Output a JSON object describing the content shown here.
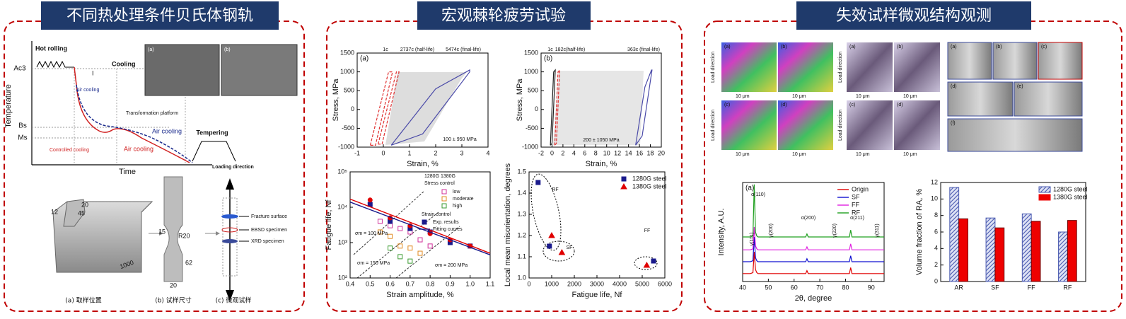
{
  "panels": [
    {
      "title": "不同热处理条件贝氏体钢轨"
    },
    {
      "title": "宏观棘轮疲劳试验"
    },
    {
      "title": "失效试样微观结构观测"
    }
  ],
  "heat_treatment": {
    "hot_rolling": "Hot rolling",
    "cooling": "Cooling",
    "air_cooling_1": "Air cooling",
    "region": "I",
    "transformation": "Transformation platform",
    "air_cooling_blue": "Air cooling",
    "air_cooling_red": "Air cooling",
    "controlled_cooling": "Controlled cooling",
    "tempering": "Tempering",
    "ylabel": "Temperature",
    "xlabel": "Time",
    "ac3": "Ac3",
    "bs": "Bs",
    "ms": "Ms",
    "insets": [
      "(a)",
      "(b)"
    ]
  },
  "specimen": {
    "loading_direction": "Loading direction",
    "rail_dims": [
      "20",
      "12",
      "45",
      "1000"
    ],
    "specimen_dims": [
      "15",
      "R20",
      "62",
      "20"
    ],
    "parts": [
      "Fracture surface",
      "EBSD specimen",
      "XRD specimen"
    ],
    "captions": [
      "(a) 取样位置",
      "(b) 试样尺寸",
      "(c) 微观试样"
    ]
  },
  "micrographs": {
    "ebsd": [
      "(a)",
      "(b)",
      "(c)",
      "(d)"
    ],
    "optical": [
      "(a)",
      "(b)",
      "(c)",
      "(d)"
    ],
    "sem": [
      "(a)",
      "(b)",
      "(c)",
      "(d)",
      "(e)",
      "(f)"
    ],
    "load_direction": "Load direction",
    "scale": "10 μm"
  },
  "chart_data": [
    {
      "type": "line",
      "panel_label": "(a)",
      "xlabel": "Strain, %",
      "ylabel": "Stress, MPa",
      "xlim": [
        -1,
        4
      ],
      "xticks": [
        -1,
        0,
        1,
        2,
        3,
        4
      ],
      "ylim": [
        -1000,
        1500
      ],
      "yticks": [
        -1000,
        -500,
        0,
        500,
        1000,
        1500
      ],
      "series": [
        {
          "color": "#e03030",
          "dash": true,
          "x": [
            -0.5,
            0.2,
            0.35,
            -0.3,
            -0.5
          ],
          "values": [
            -950,
            1000,
            1000,
            -950,
            -950
          ]
        },
        {
          "color": "#e03030",
          "dash": true,
          "x": [
            -0.2,
            0.5,
            0.6,
            -0.05,
            -0.2
          ],
          "values": [
            -920,
            1000,
            1000,
            -920,
            -920
          ]
        },
        {
          "color": "#4a4aa8",
          "x": [
            0.3,
            1.5,
            3.3,
            3.3,
            2.0,
            0.3
          ],
          "values": [
            -950,
            -650,
            1000,
            1050,
            550,
            -950
          ]
        }
      ],
      "annotations": [
        "1c",
        "2737c (half-life)",
        "5474c (final-life)",
        "100 ± 950 MPa"
      ]
    },
    {
      "type": "line",
      "panel_label": "(b)",
      "xlabel": "Strain, %",
      "ylabel": "Stress, MPa",
      "xlim": [
        -2,
        20
      ],
      "xticks": [
        -2,
        0,
        2,
        4,
        6,
        8,
        10,
        12,
        14,
        16,
        18,
        20
      ],
      "ylim": [
        -1000,
        1500
      ],
      "yticks": [
        -1000,
        -500,
        0,
        500,
        1000,
        1500
      ],
      "series": [
        {
          "color": "#222222",
          "x": [
            -0.3,
            0.3,
            0.6,
            0.0,
            -0.3
          ],
          "values": [
            -950,
            1000,
            1050,
            -900,
            -950
          ]
        },
        {
          "color": "#e03030",
          "dash": true,
          "x": [
            0.5,
            1.1,
            1.4,
            0.8,
            0.5
          ],
          "values": [
            -950,
            1000,
            1050,
            -900,
            -950
          ]
        },
        {
          "color": "#4a4aa8",
          "x": [
            15.3,
            16.5,
            18.3,
            18.2,
            17.0,
            15.3
          ],
          "values": [
            -950,
            -700,
            1050,
            1050,
            600,
            -950
          ]
        }
      ],
      "annotations": [
        "1c",
        "182c(half-life)",
        "363c (final-life)",
        "200 ± 1050 MPa"
      ]
    },
    {
      "type": "scatter",
      "xlabel": "Strain amplitude, %",
      "ylabel": "Fatigue life, Nf",
      "xlim": [
        0.4,
        1.1
      ],
      "xticks": [
        0.4,
        0.5,
        0.6,
        0.7,
        0.8,
        0.9,
        {
          "value": 1,
          "label": "1.0"
        },
        1.1
      ],
      "ylog": true,
      "ylim": [
        100,
        100000
      ],
      "yticks": [
        {
          "value": 100,
          "label": "10²"
        },
        {
          "value": 1000,
          "label": "10³"
        },
        {
          "value": 10000,
          "label": "10⁴"
        },
        {
          "value": 100000,
          "label": "10⁵"
        }
      ],
      "legend_headers": [
        "1280G 1380G",
        "Stress control",
        "Strain control"
      ],
      "series": [
        {
          "name": "low",
          "color": "#d0309a",
          "marker": "square",
          "filled": false,
          "x": [
            0.55,
            0.6,
            0.65,
            0.7,
            0.75,
            0.8
          ],
          "values": [
            4000,
            3000,
            2500,
            2000,
            1200,
            800
          ]
        },
        {
          "name": "moderate",
          "color": "#e08a20",
          "marker": "square",
          "filled": false,
          "x": [
            0.55,
            0.6,
            0.65,
            0.7,
            0.75
          ],
          "values": [
            2000,
            1500,
            800,
            700,
            500
          ]
        },
        {
          "name": "high",
          "color": "#3a9a30",
          "marker": "square",
          "filled": false,
          "x": [
            0.6,
            0.65,
            0.7
          ],
          "values": [
            700,
            400,
            300
          ]
        },
        {
          "name": "Exp. results",
          "color": "#1a1a8c",
          "marker": "square",
          "filled": true,
          "x": [
            0.5,
            0.6,
            0.7,
            0.8,
            0.9,
            1.0
          ],
          "values": [
            12000,
            4000,
            2500,
            2000,
            1000,
            800
          ]
        },
        {
          "color": "#e00000",
          "marker": "circle",
          "filled": true,
          "x": [
            0.5,
            0.6,
            0.7,
            0.8,
            0.9,
            1.0
          ],
          "values": [
            16000,
            5000,
            3000,
            1800,
            1200,
            800
          ]
        },
        {
          "name": "Fitting curves",
          "style": "line",
          "color": "#1a1a8c",
          "x": [
            0.4,
            1.1
          ],
          "values": [
            14000,
            450
          ]
        },
        {
          "style": "line",
          "color": "#e00000",
          "x": [
            0.4,
            1.1
          ],
          "values": [
            17000,
            500
          ]
        }
      ],
      "annotations": [
        "σm = 100 MPa",
        "σm = 150 MPa",
        "σm = 200 MPa"
      ]
    },
    {
      "type": "scatter",
      "xlabel": "Fatigue life, Nf",
      "ylabel": "Local mean misorientation, degrees",
      "xlim": [
        0,
        6000
      ],
      "xticks": [
        0,
        1000,
        2000,
        3000,
        4000,
        5000,
        6000
      ],
      "ylim": [
        1.0,
        1.5
      ],
      "yticks": [
        {
          "value": 1,
          "label": "1.0"
        },
        1.1,
        1.2,
        1.3,
        1.4,
        1.5
      ],
      "legend": "upper right",
      "series": [
        {
          "name": "1280G steel",
          "color": "#1a1a8c",
          "marker": "square",
          "filled": true,
          "x": [
            400,
            900,
            5500
          ],
          "values": [
            1.45,
            1.15,
            1.08
          ]
        },
        {
          "name": "1380G steel",
          "color": "#e00000",
          "marker": "triangle",
          "filled": true,
          "x": [
            1000,
            1450,
            5200
          ],
          "values": [
            1.2,
            1.12,
            1.06
          ]
        }
      ],
      "annotations": [
        "RF",
        "SF",
        "FF"
      ]
    },
    {
      "type": "line",
      "panel_label": "(a)",
      "xlabel": "2θ, degree",
      "ylabel": "Intensity, A.U.",
      "xlim": [
        40,
        95
      ],
      "xticks": [
        40,
        50,
        60,
        70,
        80,
        90
      ],
      "ylim": [
        0,
        100
      ],
      "legend": "upper right",
      "x": [
        40,
        43,
        44,
        44.5,
        45,
        45.5,
        46,
        50,
        64.5,
        65,
        65.5,
        70,
        81.5,
        82,
        82.5,
        83,
        95
      ],
      "series": [
        {
          "name": "Origin",
          "color": "#e00000",
          "values": [
            8,
            8,
            9,
            30,
            12,
            9,
            8,
            8,
            8,
            11,
            8,
            8,
            8,
            14,
            8,
            8,
            8
          ]
        },
        {
          "name": "SF",
          "color": "#1010d0",
          "values": [
            20,
            20,
            21,
            45,
            24,
            21,
            20,
            20,
            20,
            23,
            20,
            20,
            20,
            26,
            20,
            20,
            20
          ]
        },
        {
          "name": "FF",
          "color": "#e020e0",
          "values": [
            32,
            32,
            33,
            55,
            36,
            33,
            32,
            32,
            32,
            35,
            32,
            32,
            32,
            38,
            32,
            32,
            32
          ]
        },
        {
          "name": "RF",
          "color": "#20a020",
          "values": [
            45,
            45,
            46,
            98,
            50,
            46,
            45,
            45,
            45,
            48,
            45,
            45,
            45,
            52,
            45,
            45,
            45
          ]
        }
      ],
      "annotations": [
        "α(110)",
        "γ(111)",
        "γ(200)",
        "α(200)",
        "γ(220)",
        "α(211)",
        "γ(311)"
      ]
    },
    {
      "type": "bar",
      "ylabel": "Volume fraction of RA, %",
      "categories": [
        "AR",
        "SF",
        "FF",
        "RF"
      ],
      "ylim": [
        0,
        12
      ],
      "yticks": [
        0,
        2,
        4,
        6,
        8,
        10,
        12
      ],
      "legend": "upper right",
      "series": [
        {
          "name": "1280G steel",
          "color": "#4a5ab0",
          "hatch": true,
          "values": [
            11.4,
            7.7,
            8.2,
            6.0
          ]
        },
        {
          "name": "1380G steel",
          "color": "#ee0000",
          "values": [
            7.6,
            6.5,
            7.3,
            7.4
          ]
        }
      ]
    }
  ]
}
